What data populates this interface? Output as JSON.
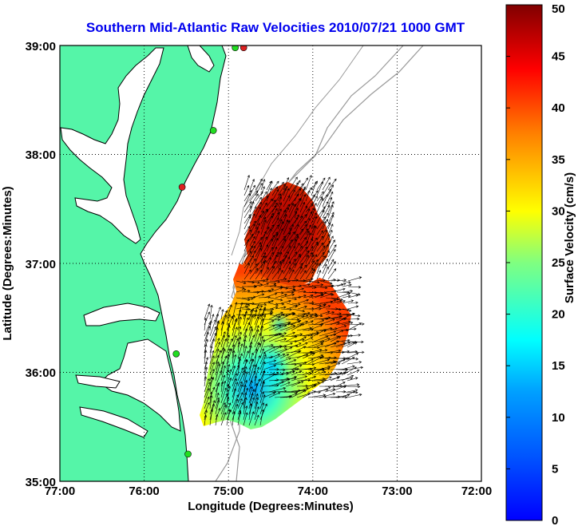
{
  "title": "Southern Mid-Atlantic Raw Velocities 2010/07/21 1000 GMT",
  "axes": {
    "xlabel": "Longitude (Degrees:Minutes)",
    "ylabel": "Latitude (Degrees:Minutes)",
    "x_ticks": [
      "77:00",
      "76:00",
      "75:00",
      "74:00",
      "73:00",
      "72:00"
    ],
    "y_ticks": [
      "39:00",
      "38:00",
      "37:00",
      "36:00",
      "35:00"
    ],
    "xlim_deg_west": [
      77,
      72
    ],
    "ylim_deg_north": [
      35,
      39
    ],
    "grid": "dotted"
  },
  "colorbar": {
    "label": "Surface Velocity (cm/s)",
    "ticks": [
      "50",
      "45",
      "40",
      "35",
      "30",
      "25",
      "20",
      "15",
      "10",
      "5",
      "0"
    ],
    "range": [
      0,
      50
    ],
    "colormap": "jet"
  },
  "colors": {
    "title": "#0000ee",
    "land": "#55f5a8",
    "coast": "#000000",
    "bathymetry": "#999999",
    "station_on": "#22dd22",
    "station_off": "#dd2222"
  },
  "stations": [
    {
      "lon": 74.82,
      "lat": 38.98,
      "status": "off"
    },
    {
      "lon": 74.92,
      "lat": 38.98,
      "status": "on"
    },
    {
      "lon": 75.18,
      "lat": 38.22,
      "status": "on"
    },
    {
      "lon": 75.55,
      "lat": 37.7,
      "status": "off"
    },
    {
      "lon": 75.62,
      "lat": 36.17,
      "status": "on"
    },
    {
      "lon": 75.48,
      "lat": 35.25,
      "status": "on"
    }
  ]
}
